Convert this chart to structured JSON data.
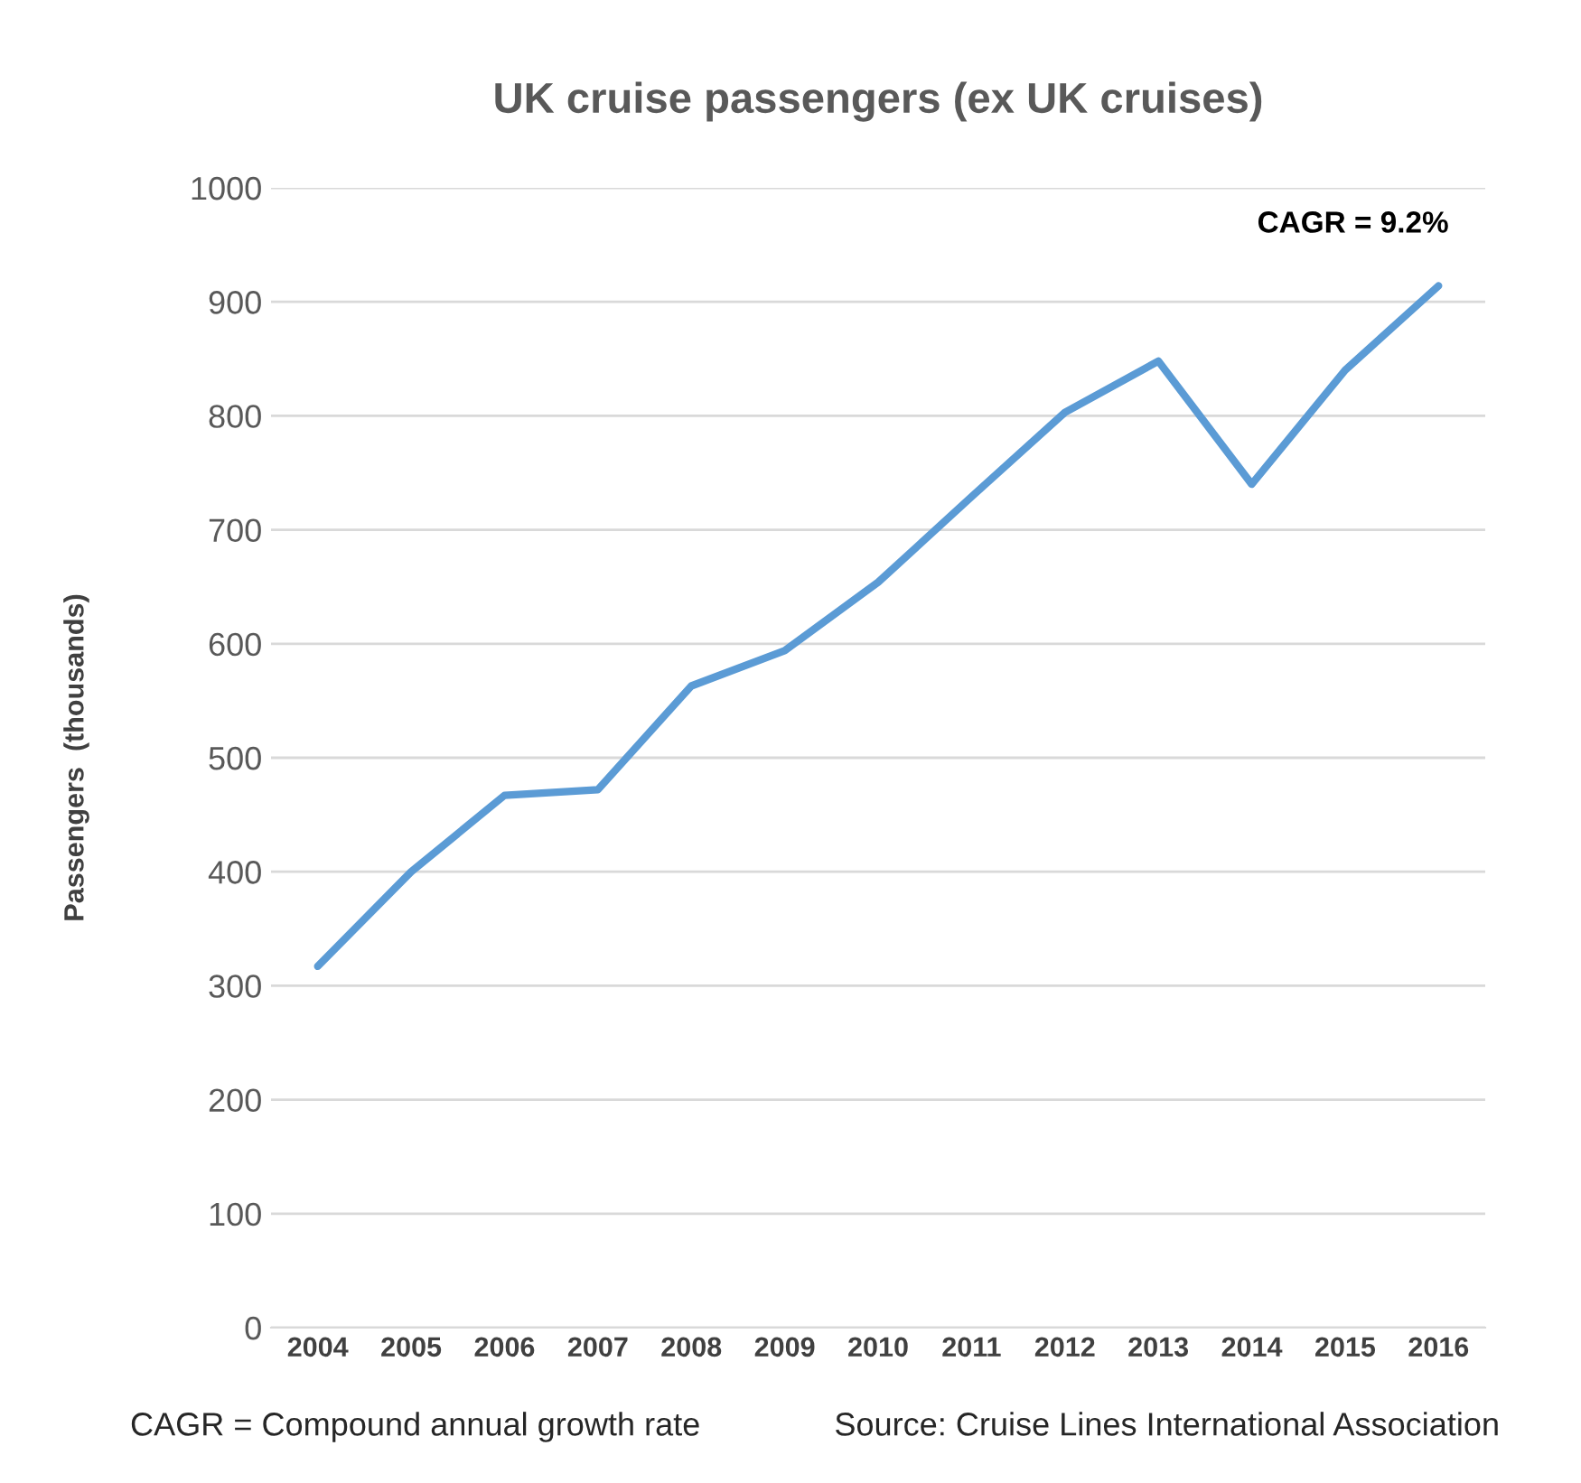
{
  "chart_data": {
    "type": "line",
    "title": "UK cruise passengers (ex UK cruises)",
    "ylabel": "Passengers  (thousands)",
    "categories": [
      "2004",
      "2005",
      "2006",
      "2007",
      "2008",
      "2009",
      "2010",
      "2011",
      "2012",
      "2013",
      "2014",
      "2015",
      "2016"
    ],
    "series": [
      {
        "color": "#5b9bd5",
        "values": [
          317,
          400,
          467,
          472,
          563,
          594,
          654,
          729,
          803,
          848,
          740,
          840,
          914
        ]
      }
    ],
    "ylim": [
      0,
      1000
    ],
    "yticks": [
      0,
      100,
      200,
      300,
      400,
      500,
      600,
      700,
      800,
      900,
      1000
    ],
    "grid": "y",
    "marker": "none",
    "line_style": "solid",
    "legend": false,
    "annotations": [
      "CAGR = 9.2%",
      "CAGR = Compound annual growth rate",
      "Source: Cruise Lines International Association"
    ]
  }
}
